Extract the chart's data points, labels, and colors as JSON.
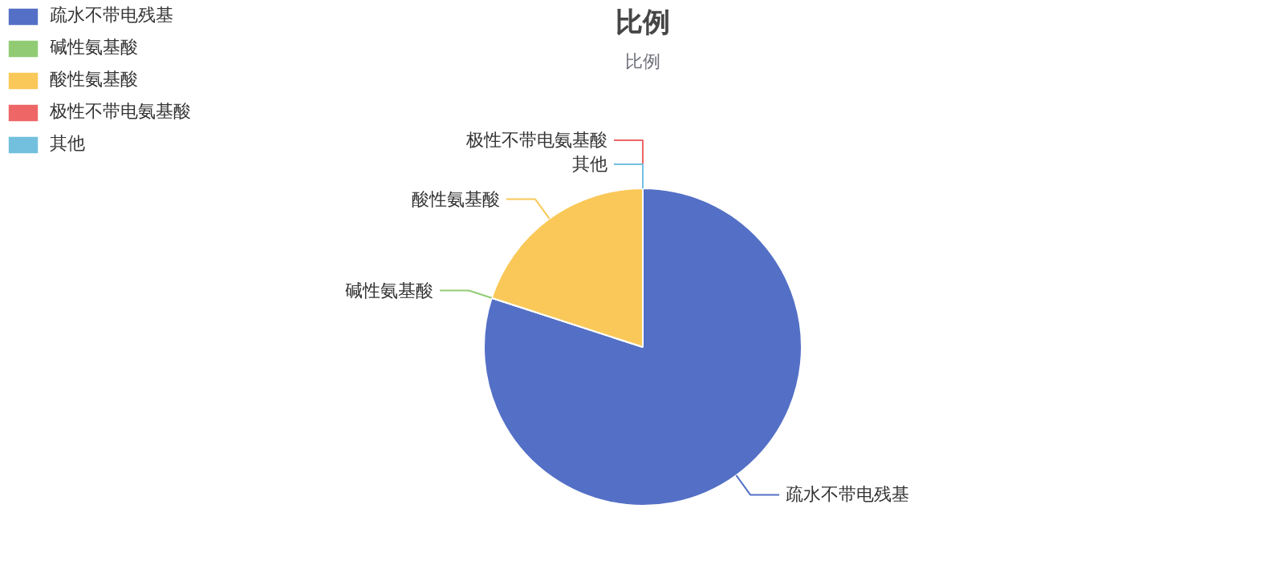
{
  "chart_data": {
    "type": "pie",
    "title": "比例",
    "subtitle": "比例",
    "categories": [
      "疏水不带电残基",
      "碱性氨基酸",
      "酸性氨基酸",
      "极性不带电氨基酸",
      "其他"
    ],
    "values": [
      80,
      0,
      20,
      0,
      0
    ],
    "colors": [
      "#5470c6",
      "#91cc75",
      "#fac858",
      "#ee6666",
      "#73c0de"
    ],
    "legend": "top left"
  }
}
